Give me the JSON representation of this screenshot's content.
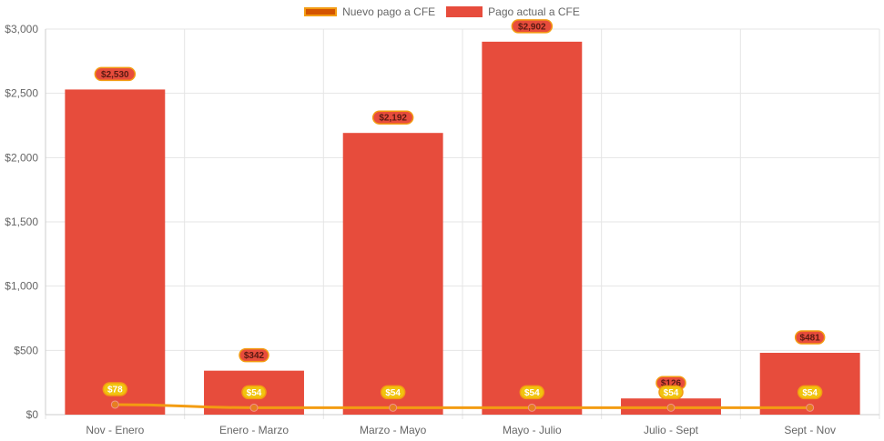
{
  "chart_data": {
    "type": "bar",
    "categories": [
      "Nov - Enero",
      "Enero - Marzo",
      "Marzo - Mayo",
      "Mayo - Julio",
      "Julio - Sept",
      "Sept - Nov"
    ],
    "series": [
      {
        "name": "Nuevo pago a CFE",
        "type": "line",
        "color": "#f39c12",
        "point_color": "#e67e22",
        "values": [
          78,
          54,
          54,
          54,
          54,
          54
        ],
        "labels": [
          "$78",
          "$54",
          "$54",
          "$54",
          "$54",
          "$54"
        ]
      },
      {
        "name": "Pago actual a CFE",
        "type": "bar",
        "color": "#e74c3c",
        "values": [
          2530,
          342,
          2192,
          2902,
          126,
          481
        ],
        "labels": [
          "$2,530",
          "$342",
          "$2,192",
          "$2,902",
          "$126",
          "$481"
        ]
      }
    ],
    "yticks": [
      "$0",
      "$500",
      "$1,000",
      "$1,500",
      "$2,000",
      "$2,500",
      "$3,000"
    ],
    "ylim": [
      0,
      3000
    ],
    "grid": true,
    "legend_position": "top"
  }
}
